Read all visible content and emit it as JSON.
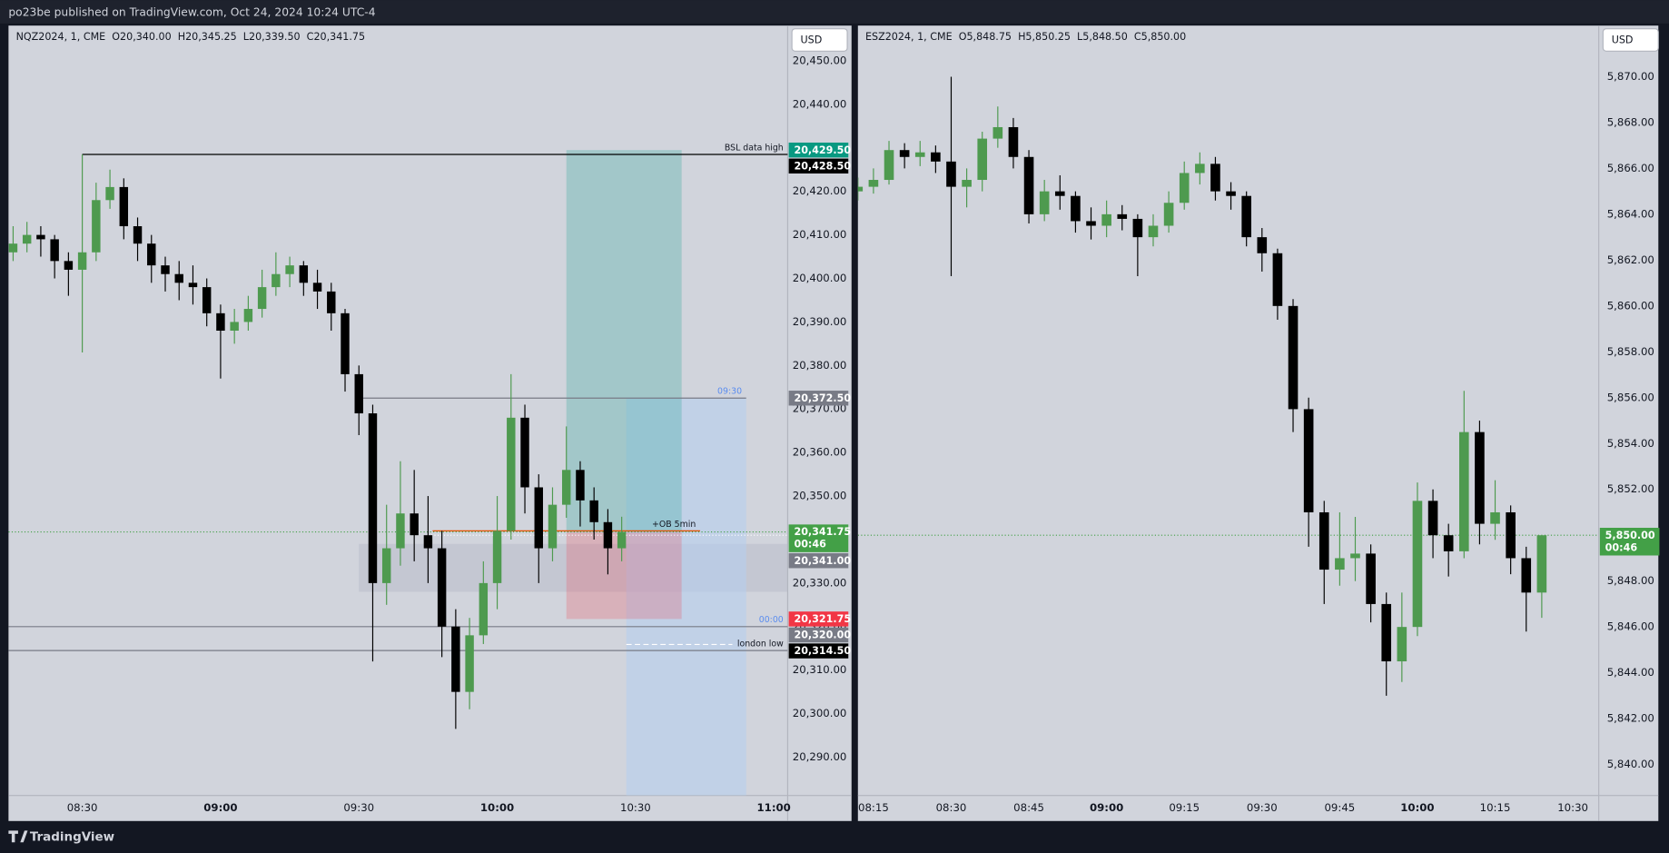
{
  "header": "po23be published on TradingView.com, Oct 24, 2024 10:24 UTC-4",
  "footer": "TradingView",
  "chart_data": [
    {
      "type": "candlestick",
      "title": "NQZ2024, 1, CME  O20,340.00  H20,345.25  L20,339.50  C20,341.75",
      "currency": "USD",
      "up_color": "#4e9a4f",
      "down_color": "#000000",
      "xlim": [
        "08:14",
        "11:03"
      ],
      "ylim": [
        20281.2,
        20458.1
      ],
      "xticks": [
        "08:30",
        "09:00",
        "09:30",
        "10:00",
        "10:30",
        "11:00"
      ],
      "yticks": [
        {
          "value": 20290,
          "label": "20,290.00"
        },
        {
          "value": 20300,
          "label": "20,300.00"
        },
        {
          "value": 20310,
          "label": "20,310.00"
        },
        {
          "value": 20320,
          "label": "20,320.00"
        },
        {
          "value": 20330,
          "label": "20,330.00"
        },
        {
          "value": 20340,
          "label": "20,340.00"
        },
        {
          "value": 20350,
          "label": "20,350.00"
        },
        {
          "value": 20360,
          "label": "20,360.00"
        },
        {
          "value": 20370,
          "label": "20,370.00"
        },
        {
          "value": 20380,
          "label": "20,380.00"
        },
        {
          "value": 20390,
          "label": "20,390.00"
        },
        {
          "value": 20400,
          "label": "20,400.00"
        },
        {
          "value": 20410,
          "label": "20,410.00"
        },
        {
          "value": 20420,
          "label": "20,420.00"
        },
        {
          "value": 20430,
          "label": "20,430.00"
        },
        {
          "value": 20440,
          "label": "20,440.00"
        },
        {
          "value": 20450,
          "label": "20,450.00"
        }
      ],
      "x": [
        "08:15",
        "08:18",
        "08:21",
        "08:24",
        "08:27",
        "08:30",
        "08:33",
        "08:36",
        "08:39",
        "08:42",
        "08:45",
        "08:48",
        "08:51",
        "08:54",
        "08:57",
        "09:00",
        "09:03",
        "09:06",
        "09:09",
        "09:12",
        "09:15",
        "09:18",
        "09:21",
        "09:24",
        "09:27",
        "09:30",
        "09:33",
        "09:36",
        "09:39",
        "09:42",
        "09:45",
        "09:48",
        "09:51",
        "09:54",
        "09:57",
        "10:00",
        "10:03",
        "10:06",
        "10:09",
        "10:12",
        "10:15",
        "10:18",
        "10:21",
        "10:24",
        "10:27"
      ],
      "open": [
        20406,
        20408,
        20410,
        20409,
        20404,
        20402,
        20406,
        20418,
        20421,
        20412,
        20408,
        20403,
        20401,
        20399,
        20398,
        20392,
        20388,
        20390,
        20393,
        20398,
        20401,
        20403,
        20399,
        20397,
        20392,
        20378,
        20369,
        20330,
        20338,
        20346,
        20341,
        20338,
        20320,
        20305,
        20318,
        20330,
        20342,
        20368,
        20352,
        20338,
        20348,
        20356,
        20349,
        20344,
        20338
      ],
      "high": [
        20412,
        20413,
        20412,
        20410,
        20406,
        20428.5,
        20422,
        20425,
        20423,
        20414,
        20410,
        20405,
        20404,
        20403,
        20400,
        20394,
        20393,
        20396,
        20402,
        20406,
        20405,
        20404,
        20402,
        20399,
        20393,
        20380,
        20371,
        20348,
        20358,
        20356,
        20350,
        20342,
        20324,
        20322,
        20335,
        20350,
        20378,
        20371,
        20355,
        20352,
        20366,
        20358,
        20352,
        20347,
        20345.25
      ],
      "low": [
        20404,
        20406,
        20405,
        20400,
        20396,
        20383,
        20404,
        20416,
        20409,
        20404,
        20399,
        20397,
        20395,
        20394,
        20389,
        20377,
        20385,
        20388,
        20391,
        20396,
        20398,
        20396,
        20393,
        20388,
        20374,
        20364,
        20312,
        20325,
        20334,
        20335,
        20330,
        20313,
        20296.5,
        20301,
        20316,
        20324,
        20340,
        20346,
        20330,
        20335,
        20345,
        20343,
        20340,
        20332,
        20335
      ],
      "close": [
        20408,
        20410,
        20409,
        20404,
        20402,
        20406,
        20418,
        20421,
        20412,
        20408,
        20403,
        20401,
        20399,
        20398,
        20392,
        20388,
        20390,
        20393,
        20398,
        20401,
        20403,
        20399,
        20397,
        20392,
        20378,
        20369,
        20330,
        20338,
        20346,
        20341,
        20338,
        20320,
        20305,
        20318,
        20330,
        20342,
        20368,
        20352,
        20338,
        20348,
        20356,
        20349,
        20344,
        20338,
        20341.75
      ],
      "boxes": [
        {
          "start": "09:30",
          "top": 20339,
          "bottom": 20328,
          "color": "rgba(180,184,198,0.45)"
        },
        {
          "start": "10:28",
          "end": "10:54",
          "top": 20372.5,
          "color": "rgba(180,205,240,0.55)"
        },
        {
          "start": "10:15",
          "end": "10:40",
          "top": 20429.5,
          "bottom": 20341.75,
          "color": "rgba(38,166,154,0.28)"
        },
        {
          "start": "10:15",
          "end": "10:40",
          "top": 20341.75,
          "bottom": 20321.75,
          "color": "rgba(242,54,69,0.22)"
        }
      ],
      "lines": [
        {
          "value": 20428.5,
          "start": "08:30",
          "color": "#000000",
          "text": "BSL data high"
        },
        {
          "value": 20372.5,
          "start": "09:30",
          "end": "10:54",
          "color": "#787b86",
          "text": "09:30",
          "text_color": "#5b8def"
        },
        {
          "value": 20320,
          "color": "#787b86",
          "text": "00:00",
          "text_color": "#5b8def"
        },
        {
          "value": 20314.5,
          "color": "#787b86",
          "text": "london low"
        },
        {
          "value": 20341,
          "start": "09:45",
          "color": "#ffffff",
          "style": "dotted"
        },
        {
          "value": 20315.9,
          "start": "10:28",
          "end": "10:51",
          "color": "#ffffff",
          "style": "dashed"
        },
        {
          "value": 20342,
          "start": "09:46",
          "end": "10:44",
          "color": "#e65100",
          "text": "+OB 5min"
        }
      ],
      "price_labels": [
        {
          "value": 20429.5,
          "label": "20,429.50",
          "color": "#089981"
        },
        {
          "value": 20428.5,
          "label": "20,428.50",
          "color": "#000000"
        },
        {
          "value": 20372.5,
          "label": "20,372.50",
          "color": "#787b86"
        },
        {
          "value": 20341,
          "label": "20,341.00",
          "color": "#787b86"
        },
        {
          "value": 20321.75,
          "label": "20,321.75",
          "color": "#f23645"
        },
        {
          "value": 20320,
          "label": "20,320.00",
          "color": "#787b86"
        },
        {
          "value": 20314.5,
          "label": "20,314.50",
          "color": "#000000"
        }
      ],
      "last_price": {
        "value": 20341.75,
        "label": "20,341.75",
        "countdown": "00:46",
        "color": "#43a047"
      }
    },
    {
      "type": "candlestick",
      "title": "ESZ2024, 1, CME  O5,848.75  H5,850.25  L5,848.50  C5,850.00",
      "currency": "USD",
      "up_color": "#4e9a4f",
      "down_color": "#000000",
      "xlim": [
        "08:12",
        "10:35"
      ],
      "ylim": [
        5838.65,
        5872.23
      ],
      "xticks": [
        "08:15",
        "08:30",
        "08:45",
        "09:00",
        "09:15",
        "09:30",
        "09:45",
        "10:00",
        "10:15",
        "10:30"
      ],
      "yticks": [
        {
          "value": 5840,
          "label": "5,840.00"
        },
        {
          "value": 5842,
          "label": "5,842.00"
        },
        {
          "value": 5844,
          "label": "5,844.00"
        },
        {
          "value": 5846,
          "label": "5,846.00"
        },
        {
          "value": 5848,
          "label": "5,848.00"
        },
        {
          "value": 5850,
          "label": "5,850.00"
        },
        {
          "value": 5852,
          "label": "5,852.00"
        },
        {
          "value": 5854,
          "label": "5,854.00"
        },
        {
          "value": 5856,
          "label": "5,856.00"
        },
        {
          "value": 5858,
          "label": "5,858.00"
        },
        {
          "value": 5860,
          "label": "5,860.00"
        },
        {
          "value": 5862,
          "label": "5,862.00"
        },
        {
          "value": 5864,
          "label": "5,864.00"
        },
        {
          "value": 5866,
          "label": "5,866.00"
        },
        {
          "value": 5868,
          "label": "5,868.00"
        },
        {
          "value": 5870,
          "label": "5,870.00"
        }
      ],
      "x": [
        "08:12",
        "08:15",
        "08:18",
        "08:21",
        "08:24",
        "08:27",
        "08:30",
        "08:33",
        "08:36",
        "08:39",
        "08:42",
        "08:45",
        "08:48",
        "08:51",
        "08:54",
        "08:57",
        "09:00",
        "09:03",
        "09:06",
        "09:09",
        "09:12",
        "09:15",
        "09:18",
        "09:21",
        "09:24",
        "09:27",
        "09:30",
        "09:33",
        "09:36",
        "09:39",
        "09:42",
        "09:45",
        "09:48",
        "09:51",
        "09:54",
        "09:57",
        "10:00",
        "10:03",
        "10:06",
        "10:09",
        "10:12",
        "10:15",
        "10:18",
        "10:21",
        "10:24"
      ],
      "open": [
        5865.0,
        5865.2,
        5865.5,
        5866.8,
        5866.5,
        5866.7,
        5866.3,
        5865.2,
        5865.5,
        5867.3,
        5867.8,
        5866.5,
        5864.0,
        5865.0,
        5864.8,
        5863.7,
        5863.5,
        5864.0,
        5863.8,
        5863.0,
        5863.5,
        5864.5,
        5865.8,
        5866.2,
        5865.0,
        5864.8,
        5863.0,
        5862.3,
        5860.0,
        5855.5,
        5851.0,
        5848.5,
        5849.0,
        5849.2,
        5847.0,
        5844.5,
        5846.0,
        5851.5,
        5850.0,
        5849.3,
        5854.5,
        5850.5,
        5851.0,
        5849.0,
        5847.5
      ],
      "high": [
        5865.6,
        5866.0,
        5867.2,
        5867.1,
        5867.2,
        5867.0,
        5870.0,
        5866.0,
        5867.6,
        5868.7,
        5868.2,
        5866.8,
        5865.5,
        5865.7,
        5865.0,
        5864.3,
        5864.6,
        5864.4,
        5864.0,
        5864.0,
        5865.0,
        5866.3,
        5866.7,
        5866.5,
        5865.4,
        5865.0,
        5863.4,
        5862.5,
        5860.3,
        5856.0,
        5851.5,
        5851.0,
        5850.8,
        5849.6,
        5847.5,
        5847.5,
        5852.3,
        5852.0,
        5850.5,
        5856.3,
        5855.0,
        5852.4,
        5851.3,
        5849.5,
        5850.0
      ],
      "low": [
        5864.6,
        5864.9,
        5865.3,
        5866.0,
        5866.1,
        5865.8,
        5861.3,
        5864.3,
        5865.0,
        5866.9,
        5866.0,
        5863.6,
        5863.7,
        5864.2,
        5863.2,
        5862.9,
        5863.0,
        5863.3,
        5861.3,
        5862.6,
        5863.2,
        5864.2,
        5865.3,
        5864.6,
        5864.2,
        5862.6,
        5861.5,
        5859.4,
        5854.5,
        5849.5,
        5847.0,
        5847.8,
        5848.0,
        5846.2,
        5843.0,
        5843.6,
        5845.6,
        5849.0,
        5848.2,
        5849.0,
        5849.6,
        5849.8,
        5848.3,
        5845.8,
        5846.4
      ],
      "close": [
        5865.2,
        5865.5,
        5866.8,
        5866.5,
        5866.7,
        5866.3,
        5865.2,
        5865.5,
        5867.3,
        5867.8,
        5866.5,
        5864.0,
        5865.0,
        5864.8,
        5863.7,
        5863.5,
        5864.0,
        5863.8,
        5863.0,
        5863.5,
        5864.5,
        5865.8,
        5866.2,
        5865.0,
        5864.8,
        5863.0,
        5862.3,
        5860.0,
        5855.5,
        5851.0,
        5848.5,
        5849.0,
        5849.2,
        5847.0,
        5844.5,
        5846.0,
        5851.5,
        5850.0,
        5849.3,
        5854.5,
        5850.5,
        5851.0,
        5849.0,
        5847.5,
        5850.0
      ],
      "last_price": {
        "value": 5850,
        "label": "5,850.00",
        "countdown": "00:46",
        "color": "#43a047"
      }
    }
  ]
}
